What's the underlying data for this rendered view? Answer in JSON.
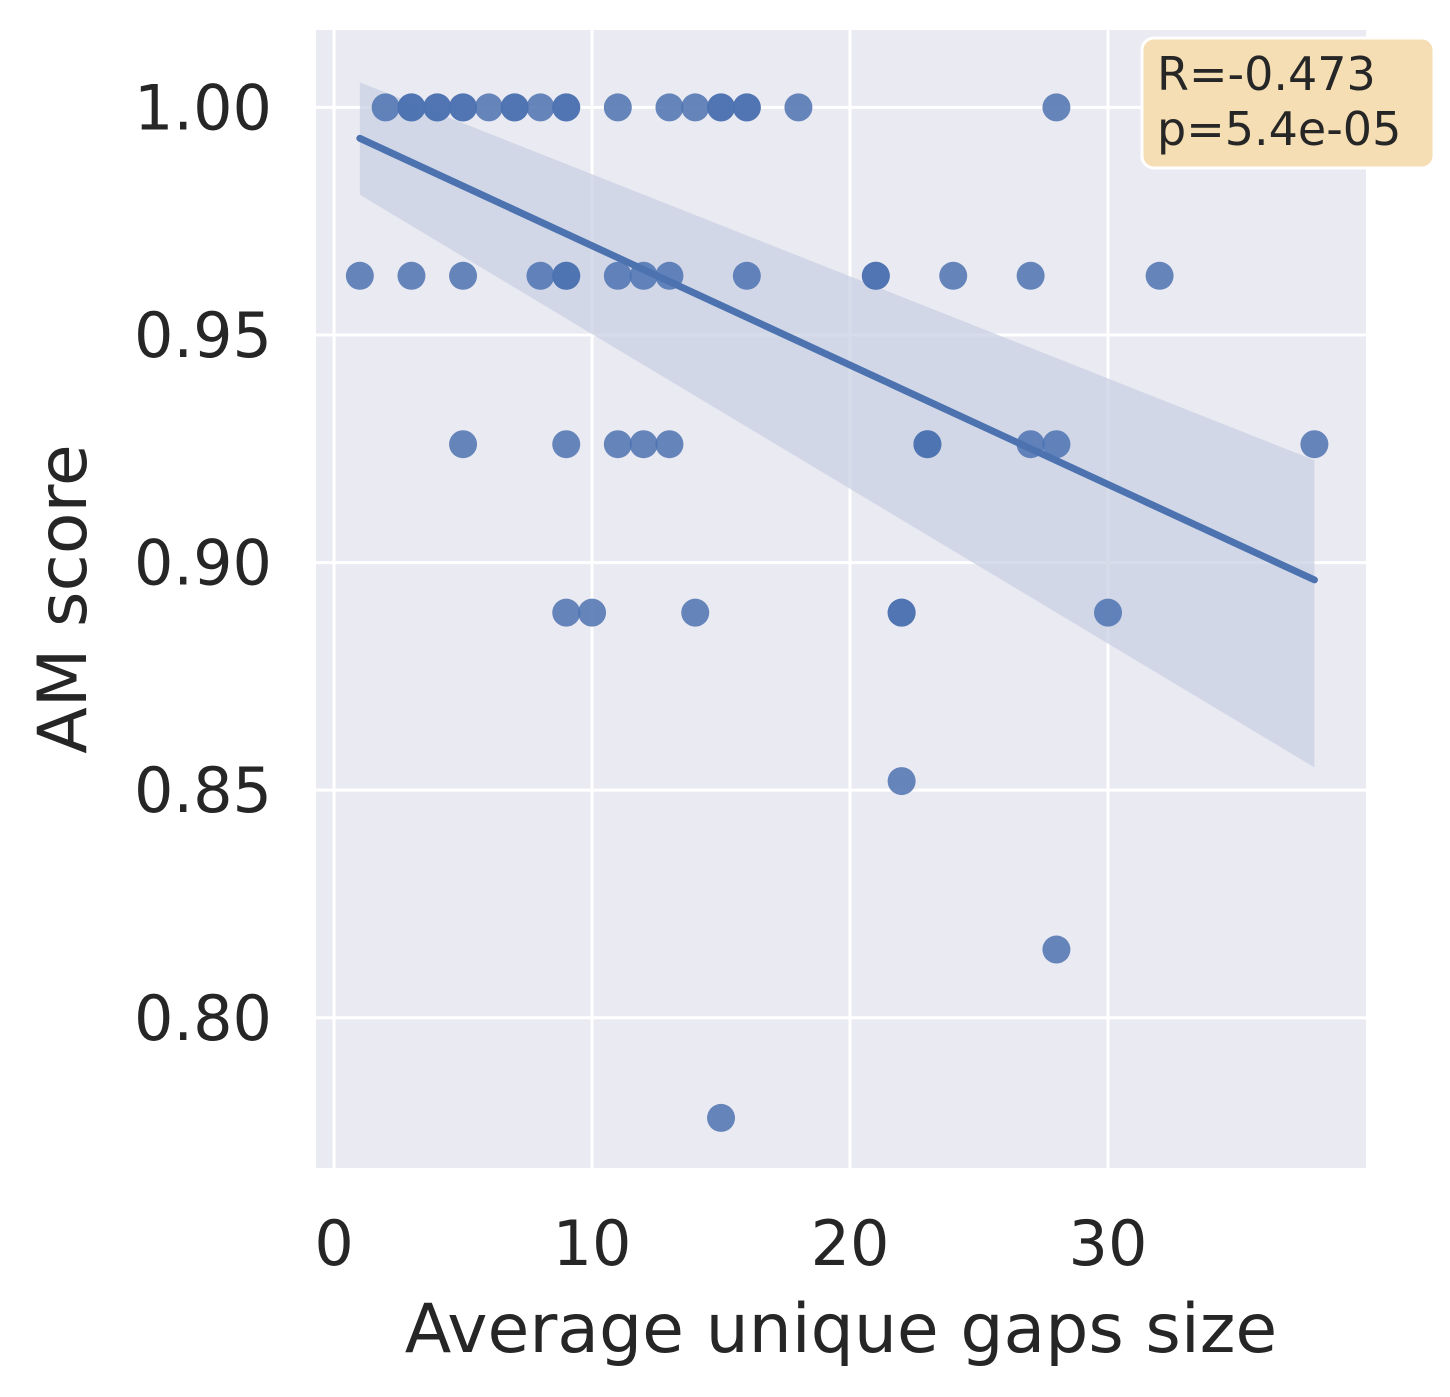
{
  "chart_data": {
    "type": "scatter",
    "title": "",
    "xlabel": "Average unique gaps size",
    "ylabel": "AM score",
    "xlim": [
      -0.7,
      40.0
    ],
    "ylim": [
      0.767,
      1.017
    ],
    "xticks": [
      0,
      10,
      20,
      30
    ],
    "xtick_labels": [
      "0",
      "10",
      "20",
      "30"
    ],
    "yticks": [
      0.8,
      0.85,
      0.9,
      0.95,
      1.0
    ],
    "ytick_labels": [
      "0.80",
      "0.85",
      "0.90",
      "0.95",
      "1.00"
    ],
    "grid": true,
    "background": "#eaeaf2",
    "point_color": "#4c72b0",
    "band_color": "#c8d0e2",
    "points": [
      [
        2,
        1.0
      ],
      [
        3,
        1.0
      ],
      [
        3,
        1.0
      ],
      [
        4,
        1.0
      ],
      [
        4,
        1.0
      ],
      [
        5,
        1.0
      ],
      [
        5,
        1.0
      ],
      [
        6,
        1.0
      ],
      [
        7,
        1.0
      ],
      [
        7,
        1.0
      ],
      [
        8,
        1.0
      ],
      [
        9,
        1.0
      ],
      [
        9,
        1.0
      ],
      [
        11,
        1.0
      ],
      [
        13,
        1.0
      ],
      [
        14,
        1.0
      ],
      [
        15,
        1.0
      ],
      [
        15,
        1.0
      ],
      [
        16,
        1.0
      ],
      [
        16,
        1.0
      ],
      [
        18,
        1.0
      ],
      [
        28,
        1.0
      ],
      [
        1,
        0.963
      ],
      [
        3,
        0.963
      ],
      [
        5,
        0.963
      ],
      [
        8,
        0.963
      ],
      [
        9,
        0.963
      ],
      [
        9,
        0.963
      ],
      [
        11,
        0.963
      ],
      [
        12,
        0.963
      ],
      [
        13,
        0.963
      ],
      [
        16,
        0.963
      ],
      [
        21,
        0.963
      ],
      [
        21,
        0.963
      ],
      [
        24,
        0.963
      ],
      [
        27,
        0.963
      ],
      [
        32,
        0.963
      ],
      [
        5,
        0.926
      ],
      [
        9,
        0.926
      ],
      [
        11,
        0.926
      ],
      [
        12,
        0.926
      ],
      [
        13,
        0.926
      ],
      [
        23,
        0.926
      ],
      [
        23,
        0.926
      ],
      [
        27,
        0.926
      ],
      [
        28,
        0.926
      ],
      [
        38,
        0.926
      ],
      [
        9,
        0.889
      ],
      [
        10,
        0.889
      ],
      [
        14,
        0.889
      ],
      [
        22,
        0.889
      ],
      [
        22,
        0.889
      ],
      [
        30,
        0.889
      ],
      [
        22,
        0.852
      ],
      [
        28,
        0.815
      ],
      [
        15,
        0.778
      ]
    ],
    "regression": {
      "x": [
        1,
        38
      ],
      "y": [
        0.9932,
        0.8962
      ],
      "ci_upper": [
        1.0055,
        0.9225
      ],
      "ci_lower": [
        0.9808,
        0.855
      ]
    },
    "annotation": {
      "lines": [
        "R=-0.473",
        "p=5.4e-05"
      ],
      "placement": "top-right",
      "box_color": "#f5deb3"
    }
  }
}
